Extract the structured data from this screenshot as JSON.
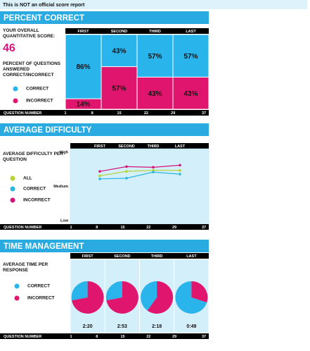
{
  "header": {
    "notice": "This is NOT an official score report"
  },
  "score": {
    "label": "YOUR OVERALL QUANTITATIVE SCORE:",
    "value": 46
  },
  "chart_data": [
    {
      "type": "mosaic",
      "title": "PERCENT CORRECT",
      "ylabel": "PERCENT OF QUESTIONS ANSWERED CORRECT/INCORRECT",
      "categories": [
        "FIRST",
        "SECOND",
        "THIRD",
        "LAST"
      ],
      "series": [
        {
          "name": "CORRECT",
          "color": "#29b5ec",
          "values": [
            86,
            43,
            57,
            57
          ],
          "value_labels": [
            "86%",
            "43%",
            "57%",
            "57%"
          ]
        },
        {
          "name": "INCORRECT",
          "color": "#e0166e",
          "values": [
            14,
            57,
            43,
            43
          ],
          "value_labels": [
            "14%",
            "57%",
            "43%",
            "43%"
          ]
        }
      ],
      "xlabel": "QUESTION NUMBER",
      "xlim": [
        1,
        37
      ],
      "xticks": [
        1,
        8,
        15,
        22,
        29,
        37
      ]
    },
    {
      "type": "line",
      "title": "AVERAGE DIFFICULTY",
      "ylabel": "AVERAGE DIFFICULTY PER QUESTION",
      "categories": [
        "FIRST",
        "SECOND",
        "THIRD",
        "LAST"
      ],
      "series": [
        {
          "name": "ALL",
          "color": "#b5d334",
          "values": [
            1.31,
            1.44,
            1.47,
            1.47
          ]
        },
        {
          "name": "CORRECT",
          "color": "#2bb6e0",
          "values": [
            1.22,
            1.24,
            1.42,
            1.36
          ]
        },
        {
          "name": "INCORRECT",
          "color": "#d6127b",
          "values": [
            1.44,
            1.58,
            1.56,
            1.62
          ]
        }
      ],
      "ylim": [
        0,
        2
      ],
      "yticks": [
        {
          "value": 0,
          "label": "Low"
        },
        {
          "value": 1,
          "label": "Medium"
        },
        {
          "value": 2,
          "label": "High"
        }
      ],
      "xlabel": "QUESTION NUMBER",
      "xlim": [
        1,
        37
      ],
      "xticks": [
        1,
        8,
        15,
        22,
        29,
        37
      ]
    },
    {
      "type": "pie",
      "title": "TIME MANAGEMENT",
      "ylabel": "AVERAGE TIME PER RESPONSE",
      "categories": [
        "FIRST",
        "SECOND",
        "THIRD",
        "LAST"
      ],
      "series": [
        {
          "name": "CORRECT",
          "color": "#29b5ec",
          "values": [
            28,
            28,
            40,
            70
          ]
        },
        {
          "name": "INCORRECT",
          "color": "#e0166e",
          "values": [
            72,
            72,
            60,
            30
          ]
        }
      ],
      "times": [
        "2:20",
        "2:53",
        "2:18",
        "0:49"
      ],
      "xlabel": "QUESTION NUMBER",
      "xlim": [
        1,
        37
      ],
      "xticks": [
        1,
        8,
        15,
        22,
        29,
        37
      ]
    }
  ]
}
